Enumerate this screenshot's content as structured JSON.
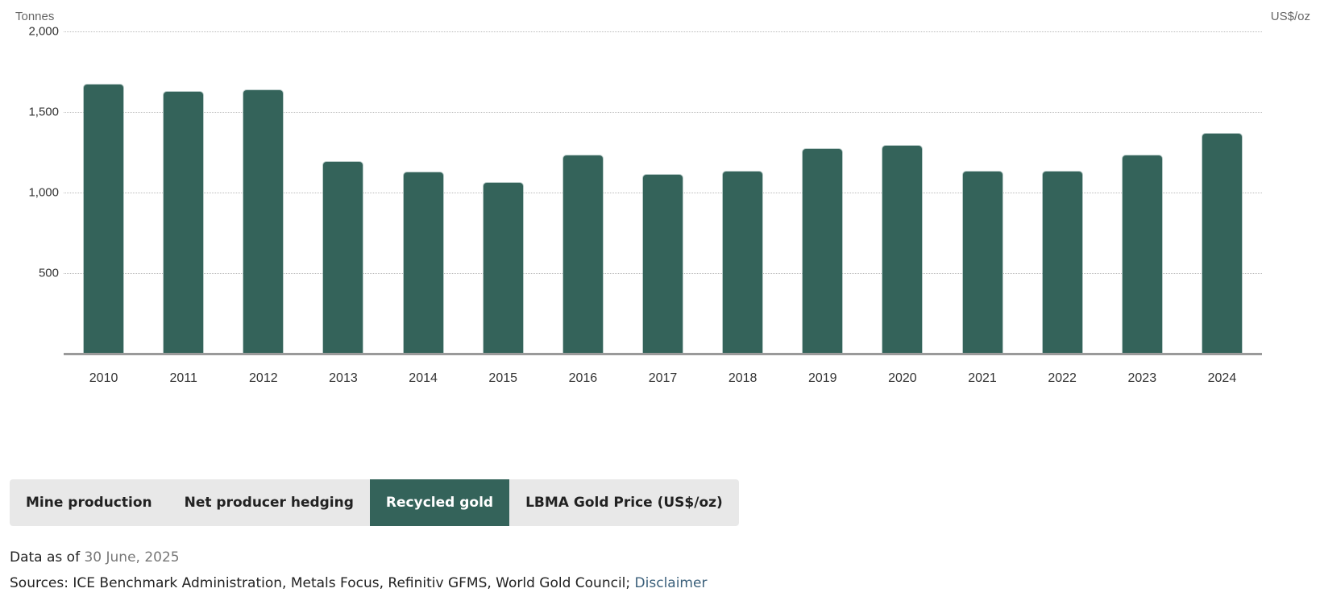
{
  "chart_data": {
    "type": "bar",
    "title": "",
    "ylabel": "Tonnes",
    "y2label": "US$/oz",
    "xlabel": "",
    "ylim": [
      0,
      2000
    ],
    "yticks": [
      "500",
      "1,000",
      "1,500",
      "2,000"
    ],
    "grid": true,
    "categories": [
      "2010",
      "2011",
      "2012",
      "2013",
      "2014",
      "2015",
      "2016",
      "2017",
      "2018",
      "2019",
      "2020",
      "2021",
      "2022",
      "2023",
      "2024"
    ],
    "series": [
      {
        "name": "Recycled gold",
        "color": "#34635a",
        "values": [
          1670,
          1623,
          1637,
          1190,
          1123,
          1062,
          1230,
          1110,
          1130,
          1272,
          1290,
          1130,
          1130,
          1230,
          1365
        ]
      }
    ]
  },
  "tabs": [
    {
      "label": "Mine production",
      "active": false
    },
    {
      "label": "Net producer hedging",
      "active": false
    },
    {
      "label": "Recycled gold",
      "active": true
    },
    {
      "label": "LBMA Gold Price (US$/oz)",
      "active": false
    }
  ],
  "footer": {
    "data_as_of_label": "Data as of ",
    "data_as_of_date": "30 June, 2025",
    "sources_label": "Sources: ICE Benchmark Administration, Metals Focus, Refinitiv GFMS, World Gold Council; ",
    "disclaimer_link": "Disclaimer"
  }
}
